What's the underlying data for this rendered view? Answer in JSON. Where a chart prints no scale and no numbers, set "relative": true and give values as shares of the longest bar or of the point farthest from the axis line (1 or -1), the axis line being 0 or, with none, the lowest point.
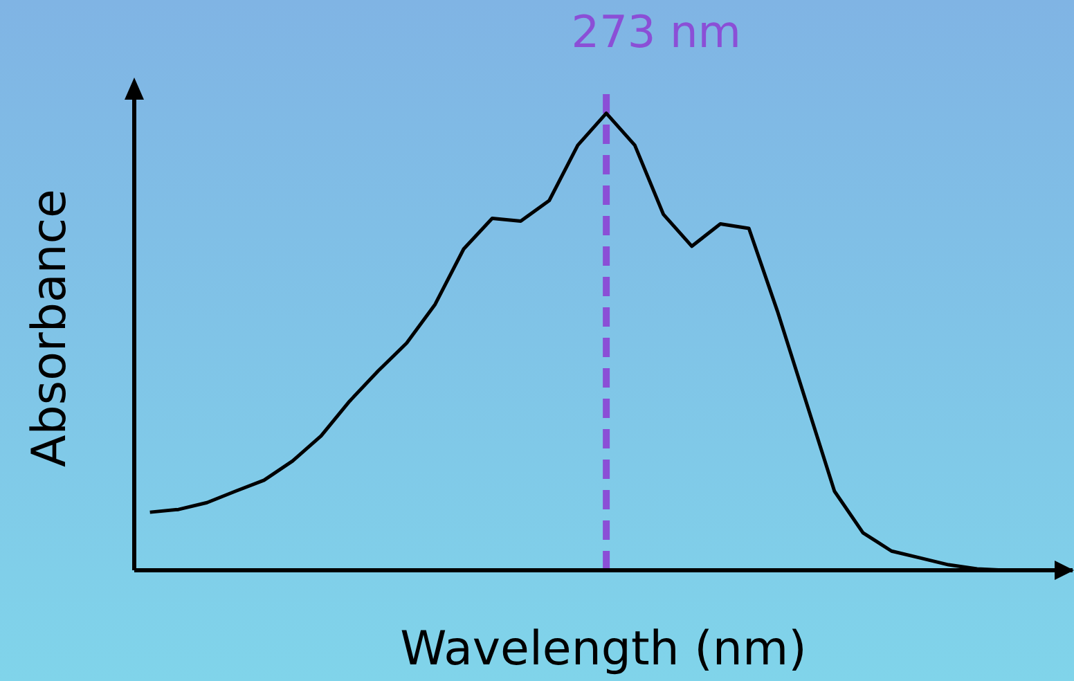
{
  "chart_data": {
    "type": "line",
    "relative": true,
    "xlabel": "Wavelength (nm)",
    "ylabel": "Absorbance",
    "grid": false,
    "legend": false,
    "marker": "none",
    "line_style": "solid",
    "categories": [
      null,
      null,
      null,
      null,
      null,
      null,
      null,
      null,
      null,
      null,
      null,
      null,
      null,
      null,
      null,
      null,
      null,
      null,
      null,
      null,
      null,
      null,
      null,
      null,
      null,
      null,
      null,
      null,
      null,
      null,
      null,
      null,
      null
    ],
    "series": [
      {
        "color": "#000000",
        "values": [
          0.127,
          0.133,
          0.148,
          0.173,
          0.197,
          0.239,
          0.294,
          0.37,
          0.436,
          0.497,
          0.582,
          0.703,
          0.77,
          0.764,
          0.809,
          0.93,
          1,
          0.93,
          0.779,
          0.709,
          0.758,
          0.748,
          0.567,
          0.37,
          0.173,
          0.082,
          0.042,
          0.027,
          0.012,
          0.003,
          0,
          0,
          0
        ]
      }
    ],
    "annotations": [
      "273 nm"
    ]
  }
}
